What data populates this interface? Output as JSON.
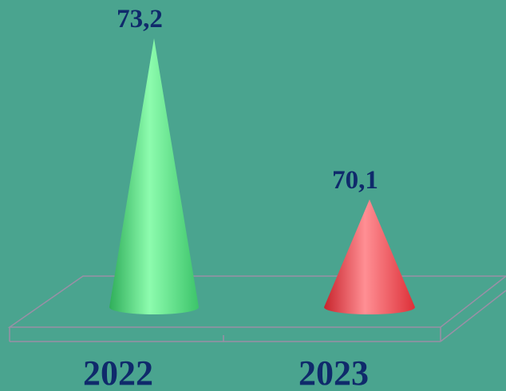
{
  "chart_data": {
    "type": "bar",
    "style": "3d-cone",
    "categories": [
      "2022",
      "2023"
    ],
    "values": [
      73.2,
      70.1
    ],
    "data_labels": [
      "73,2",
      "70,1"
    ],
    "colors": [
      "#5ee38a",
      "#f0484f"
    ],
    "title": "",
    "xlabel": "",
    "ylabel": "",
    "ylim": [
      69.0,
      73.2
    ],
    "grid": false,
    "legend": "none",
    "background": "#4aa48f",
    "floor_color": "#9a8fa6",
    "label_color": "#0f2a6b"
  }
}
